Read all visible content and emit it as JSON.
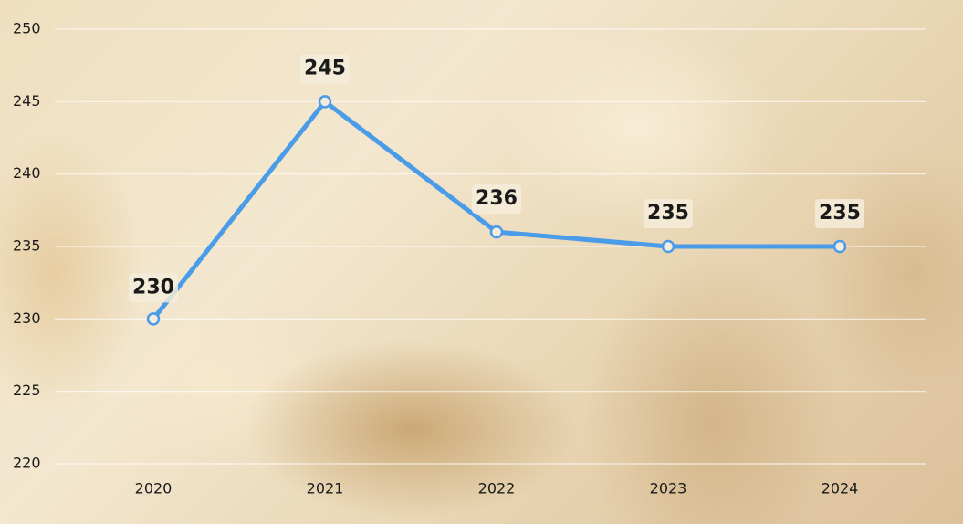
{
  "chart_data": {
    "type": "line",
    "categories": [
      "2020",
      "2021",
      "2022",
      "2023",
      "2024"
    ],
    "series": [
      {
        "color": "#4a9be8",
        "values": [
          230,
          245,
          236,
          235,
          235
        ]
      }
    ],
    "ylim": [
      220,
      250
    ],
    "yticks": [
      220,
      225,
      230,
      235,
      240,
      245,
      250
    ],
    "grid": true
  }
}
